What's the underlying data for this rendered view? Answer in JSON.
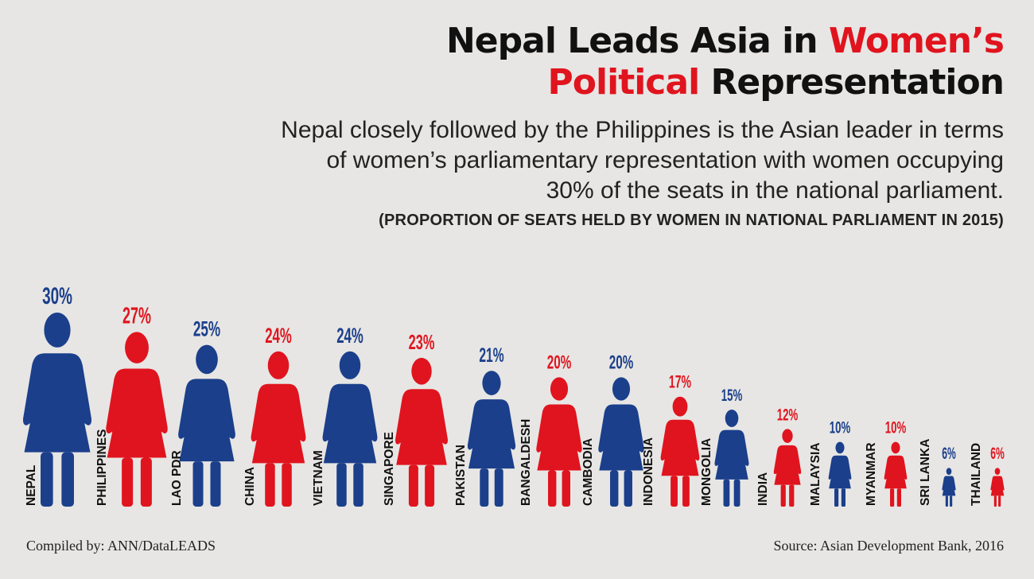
{
  "header": {
    "title_line1_black": "Nepal Leads Asia in ",
    "title_line1_red": "Women’s",
    "title_line2_red": "Political",
    "title_line2_black": " Representation",
    "subtitle_line1": "Nepal closely followed by the Philippines is the Asian leader in terms",
    "subtitle_line2": "of women’s parliamentary representation with women occupying",
    "subtitle_line3": "30% of the seats in the national parliament.",
    "caption": "(PROPORTION OF SEATS HELD BY WOMEN IN NATIONAL PARLIAMENT IN 2015)"
  },
  "footer": {
    "compiled_by": "Compiled by: ANN/DataLEADS",
    "source": "Source: Asian Development Bank, 2016"
  },
  "colors": {
    "blue": "#1b3f8b",
    "red": "#e0141e",
    "background": "#e7e6e4"
  },
  "chart_data": {
    "type": "bar",
    "categories": [
      "NEPAL",
      "PHILIPPINES",
      "LAO PDR",
      "CHINA",
      "VIETNAM",
      "SINGAPORE",
      "PAKISTAN",
      "BANGALDESH",
      "CAMBODIA",
      "INDONESIA",
      "MONGOLIA",
      "INDIA",
      "MALAYSIA",
      "MYANMAR",
      "SRI LANKA",
      "THAILAND"
    ],
    "values": [
      30,
      27,
      25,
      24,
      24,
      23,
      21,
      20,
      20,
      17,
      15,
      12,
      10,
      10,
      6,
      6
    ],
    "labels": [
      "30%",
      "27%",
      "25%",
      "24%",
      "24%",
      "23%",
      "21%",
      "20%",
      "20%",
      "17%",
      "15%",
      "12%",
      "10%",
      "10%",
      "6%",
      "6%"
    ],
    "colors": [
      "blue",
      "red",
      "blue",
      "red",
      "blue",
      "red",
      "blue",
      "red",
      "blue",
      "red",
      "blue",
      "red",
      "blue",
      "red",
      "blue",
      "red"
    ],
    "unit": "%",
    "marker": "woman-figure-icon"
  }
}
